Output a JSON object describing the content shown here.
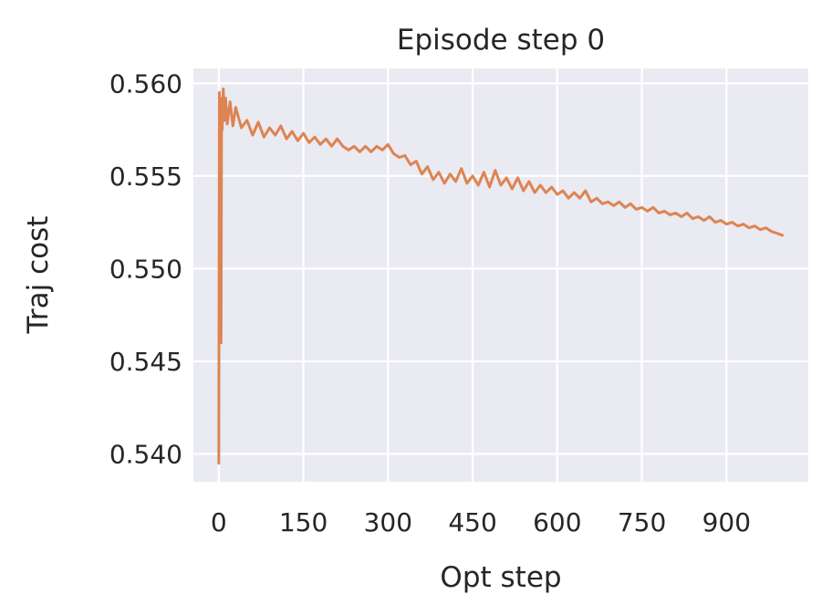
{
  "chart_data": {
    "type": "line",
    "title": "Episode step 0",
    "xlabel": "Opt step",
    "ylabel": "Traj cost",
    "xlim": [
      -45,
      1045
    ],
    "ylim": [
      0.5385,
      0.5608
    ],
    "xticks": [
      0,
      150,
      300,
      450,
      600,
      750,
      900
    ],
    "xtick_labels": [
      "0",
      "150",
      "300",
      "450",
      "600",
      "750",
      "900"
    ],
    "yticks": [
      0.54,
      0.545,
      0.55,
      0.555,
      0.56
    ],
    "ytick_labels": [
      "0.540",
      "0.545",
      "0.550",
      "0.555",
      "0.560"
    ],
    "grid": true,
    "legend": false,
    "series": [
      {
        "color": "#dd8452",
        "x": [
          0,
          1,
          2,
          3,
          4,
          5,
          6,
          8,
          10,
          12,
          15,
          20,
          25,
          30,
          40,
          50,
          60,
          70,
          80,
          90,
          100,
          110,
          120,
          130,
          140,
          150,
          160,
          170,
          180,
          190,
          200,
          210,
          220,
          230,
          240,
          250,
          260,
          270,
          280,
          290,
          300,
          310,
          320,
          330,
          340,
          350,
          360,
          370,
          380,
          390,
          400,
          410,
          420,
          430,
          440,
          450,
          460,
          470,
          480,
          490,
          500,
          510,
          520,
          530,
          540,
          550,
          560,
          570,
          580,
          590,
          600,
          610,
          620,
          630,
          640,
          650,
          660,
          670,
          680,
          690,
          700,
          710,
          720,
          730,
          740,
          750,
          760,
          770,
          780,
          790,
          800,
          810,
          820,
          830,
          840,
          850,
          860,
          870,
          880,
          890,
          900,
          910,
          920,
          930,
          940,
          950,
          960,
          970,
          980,
          990,
          999
        ],
        "y": [
          0.5395,
          0.5595,
          0.552,
          0.5585,
          0.546,
          0.5592,
          0.5575,
          0.5597,
          0.558,
          0.5592,
          0.5578,
          0.559,
          0.5577,
          0.5587,
          0.5576,
          0.558,
          0.5572,
          0.5579,
          0.5571,
          0.5576,
          0.5572,
          0.5577,
          0.557,
          0.5574,
          0.5569,
          0.5573,
          0.5568,
          0.5571,
          0.5567,
          0.557,
          0.5566,
          0.557,
          0.5566,
          0.5564,
          0.5566,
          0.5563,
          0.5566,
          0.5563,
          0.5566,
          0.5564,
          0.5567,
          0.5562,
          0.556,
          0.5561,
          0.5556,
          0.5558,
          0.5551,
          0.5555,
          0.5548,
          0.5552,
          0.5546,
          0.5551,
          0.5547,
          0.5554,
          0.5546,
          0.555,
          0.5545,
          0.5552,
          0.5544,
          0.5553,
          0.5545,
          0.5549,
          0.5543,
          0.5549,
          0.5542,
          0.5547,
          0.5541,
          0.5545,
          0.5541,
          0.5544,
          0.554,
          0.5542,
          0.5538,
          0.5541,
          0.5538,
          0.5542,
          0.5536,
          0.5538,
          0.5535,
          0.5536,
          0.5534,
          0.5536,
          0.5533,
          0.5535,
          0.5532,
          0.5533,
          0.5531,
          0.5533,
          0.553,
          0.5531,
          0.5529,
          0.553,
          0.5528,
          0.553,
          0.5527,
          0.5528,
          0.5526,
          0.5528,
          0.5525,
          0.5526,
          0.5524,
          0.5525,
          0.5523,
          0.5524,
          0.5522,
          0.5523,
          0.5521,
          0.5522,
          0.552,
          0.5519,
          0.5518
        ]
      }
    ]
  }
}
